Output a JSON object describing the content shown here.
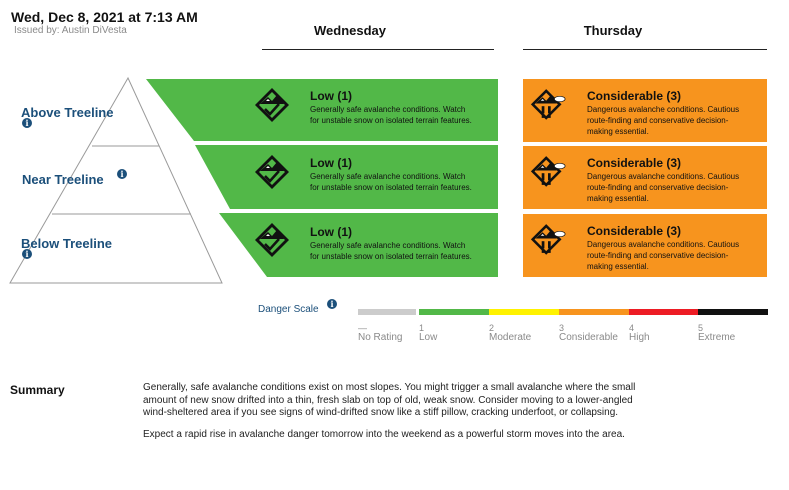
{
  "header": {
    "date": "Wed, Dec 8, 2021 at 7:13 AM",
    "issued": "Issued by: Austin DiVesta"
  },
  "days": {
    "wednesday": "Wednesday",
    "thursday": "Thursday"
  },
  "elevations": [
    {
      "label": "Above Treeline",
      "info_icon": "info-icon"
    },
    {
      "label": "Near Treeline",
      "info_icon": "info-icon"
    },
    {
      "label": "Below Treeline",
      "info_icon": "info-icon"
    }
  ],
  "wednesday_ratings": [
    {
      "title": "Low (1)",
      "desc1": "Generally safe avalanche conditions. Watch",
      "desc2": "for unstable snow on isolated terrain features.",
      "color": "#52b848",
      "icon": "low-danger-check-icon"
    },
    {
      "title": "Low (1)",
      "desc1": "Generally safe avalanche conditions. Watch",
      "desc2": "for unstable snow on isolated terrain features.",
      "color": "#52b848",
      "icon": "low-danger-check-icon"
    },
    {
      "title": "Low (1)",
      "desc1": "Generally safe avalanche conditions. Watch",
      "desc2": "for unstable snow on isolated terrain features.",
      "color": "#52b848",
      "icon": "low-danger-check-icon"
    }
  ],
  "thursday_ratings": [
    {
      "title": "Considerable (3)",
      "desc1": "Dangerous avalanche conditions. Cautious",
      "desc2": "route-finding and conservative decision-",
      "desc3": "making essential.",
      "color": "#f7941e",
      "icon": "considerable-danger-icon"
    },
    {
      "title": "Considerable (3)",
      "desc1": "Dangerous avalanche conditions. Cautious",
      "desc2": "route-finding and conservative decision-",
      "desc3": "making essential.",
      "color": "#f7941e",
      "icon": "considerable-danger-icon"
    },
    {
      "title": "Considerable (3)",
      "desc1": "Dangerous avalanche conditions. Cautious",
      "desc2": "route-finding and conservative decision-",
      "desc3": "making essential.",
      "color": "#f7941e",
      "icon": "considerable-danger-icon"
    }
  ],
  "danger_scale": {
    "label": "Danger Scale",
    "levels": [
      {
        "num": "—",
        "name": "No Rating",
        "color": "#cccccc"
      },
      {
        "num": "1",
        "name": "Low",
        "color": "#52b848"
      },
      {
        "num": "2",
        "name": "Moderate",
        "color": "#fff200"
      },
      {
        "num": "3",
        "name": "Considerable",
        "color": "#f7941e"
      },
      {
        "num": "4",
        "name": "High",
        "color": "#ed1c24"
      },
      {
        "num": "5",
        "name": "Extreme",
        "color": "#111111"
      }
    ]
  },
  "summary": {
    "heading": "Summary",
    "p1": "Generally, safe avalanche conditions exist on most slopes. You might trigger a small avalanche where the small amount of new snow drifted into a thin, fresh slab on top of old, weak snow. Consider moving to a lower-angled wind-sheltered area if you see signs of wind-drifted snow like a stiff pillow, cracking underfoot, or collapsing.",
    "p2": "Expect a rapid rise in avalanche danger tomorrow into the weekend as a powerful storm moves into the area."
  }
}
